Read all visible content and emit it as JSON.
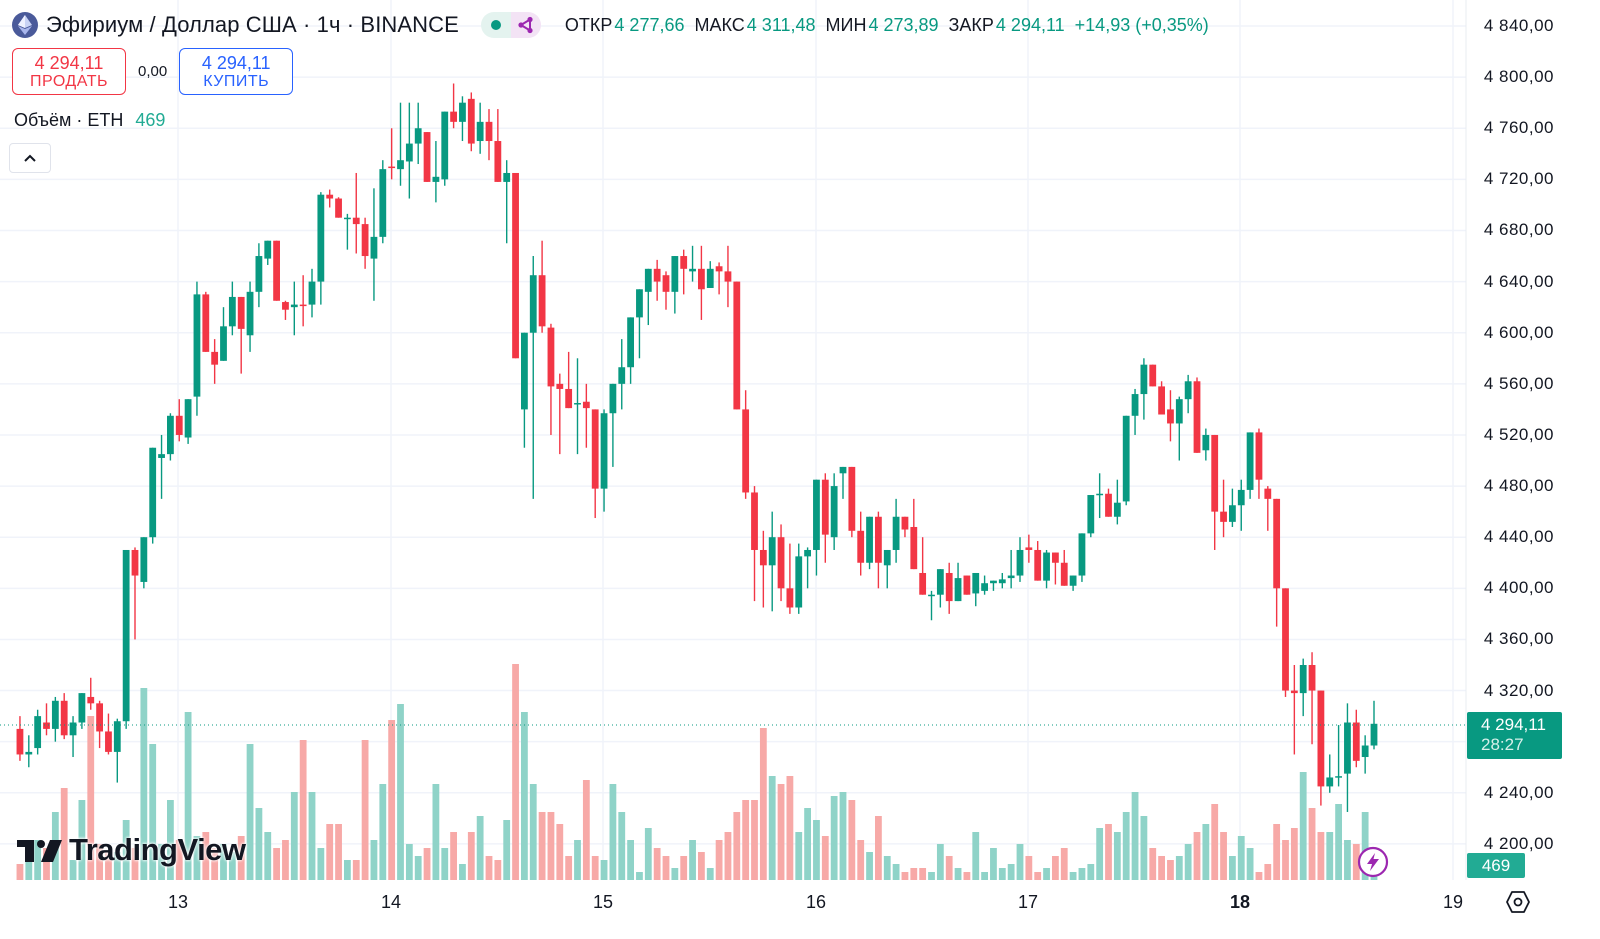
{
  "header": {
    "title": "Эфириум / Доллар США · 1ч · BINANCE",
    "symbol_icon": "ethereum-icon",
    "status_icons": [
      "market-open-dot-icon",
      "share-icon"
    ],
    "ohlc": {
      "open_label": "ОТКР",
      "open": "4 277,66",
      "high_label": "МАКС",
      "high": "4 311,48",
      "low_label": "МИН",
      "low": "4 273,89",
      "close_label": "ЗАКР",
      "close": "4 294,11",
      "change": "+14,93 (+0,35%)"
    }
  },
  "trade": {
    "sell_price": "4 294,11",
    "sell_label": "ПРОДАТЬ",
    "spread": "0,00",
    "buy_price": "4 294,11",
    "buy_label": "КУПИТЬ"
  },
  "volume_legend": {
    "label": "Объём · ETH",
    "value": "469"
  },
  "price_axis": {
    "labels": [
      "4 840,00",
      "4 800,00",
      "4 760,00",
      "4 720,00",
      "4 680,00",
      "4 640,00",
      "4 600,00",
      "4 560,00",
      "4 520,00",
      "4 480,00",
      "4 440,00",
      "4 400,00",
      "4 360,00",
      "4 320,00",
      "4 240,00",
      "4 200,00"
    ],
    "current_price": "4 294,11",
    "countdown": "28:27",
    "volume_tag": "469"
  },
  "time_axis": {
    "labels": [
      "13",
      "14",
      "15",
      "16",
      "17",
      "18",
      "19"
    ],
    "bold_label": "18"
  },
  "branding": {
    "logo_text": "TradingView"
  },
  "colors": {
    "up": "#089981",
    "down": "#f23645",
    "volume_up": "#8fd3c8",
    "volume_down": "#f7a9a7",
    "grid": "#f0f3fa",
    "accent_buy": "#2962ff"
  },
  "chart_data": {
    "type": "candlestick",
    "title": "Эфириум / Доллар США · 1ч · BINANCE",
    "xlabel": "",
    "ylabel": "",
    "ylim": [
      4180,
      4850
    ],
    "interval": "1h",
    "categories_days": [
      "13",
      "14",
      "15",
      "16",
      "17",
      "18",
      "19"
    ],
    "grid": true,
    "ohlc": [
      [
        4290,
        4300,
        4265,
        4270
      ],
      [
        4270,
        4285,
        4260,
        4272
      ],
      [
        4275,
        4305,
        4270,
        4300
      ],
      [
        4295,
        4310,
        4285,
        4290
      ],
      [
        4290,
        4315,
        4280,
        4312
      ],
      [
        4312,
        4318,
        4282,
        4285
      ],
      [
        4285,
        4300,
        4268,
        4295
      ],
      [
        4295,
        4318,
        4290,
        4318
      ],
      [
        4315,
        4330,
        4305,
        4310
      ],
      [
        4310,
        4312,
        4275,
        4288
      ],
      [
        4288,
        4302,
        4270,
        4272
      ],
      [
        4272,
        4298,
        4248,
        4296
      ],
      [
        4296,
        4430,
        4290,
        4430
      ],
      [
        4430,
        4432,
        4360,
        4410
      ],
      [
        4405,
        4440,
        4400,
        4440
      ],
      [
        4440,
        4510,
        4435,
        4510
      ],
      [
        4502,
        4520,
        4470,
        4505
      ],
      [
        4505,
        4537,
        4500,
        4535
      ],
      [
        4535,
        4548,
        4515,
        4520
      ],
      [
        4518,
        4548,
        4513,
        4548
      ],
      [
        4550,
        4640,
        4535,
        4630
      ],
      [
        4630,
        4632,
        4585,
        4585
      ],
      [
        4585,
        4595,
        4560,
        4575
      ],
      [
        4578,
        4620,
        4578,
        4605
      ],
      [
        4605,
        4640,
        4598,
        4628
      ],
      [
        4628,
        4628,
        4568,
        4603
      ],
      [
        4598,
        4640,
        4585,
        4632
      ],
      [
        4632,
        4670,
        4620,
        4660
      ],
      [
        4658,
        4672,
        4653,
        4672
      ],
      [
        4672,
        4672,
        4628,
        4625
      ],
      [
        4624,
        4625,
        4610,
        4618
      ],
      [
        4620,
        4640,
        4598,
        4622
      ],
      [
        4622,
        4645,
        4605,
        4621
      ],
      [
        4622,
        4650,
        4612,
        4640
      ],
      [
        4640,
        4710,
        4622,
        4708
      ],
      [
        4708,
        4712,
        4698,
        4705
      ],
      [
        4705,
        4706,
        4690,
        4690
      ],
      [
        4690,
        4693,
        4665,
        4690
      ],
      [
        4690,
        4725,
        4662,
        4685
      ],
      [
        4685,
        4690,
        4650,
        4660
      ],
      [
        4658,
        4713,
        4625,
        4675
      ],
      [
        4675,
        4735,
        4670,
        4728
      ],
      [
        4730,
        4760,
        4720,
        4729
      ],
      [
        4728,
        4780,
        4715,
        4735
      ],
      [
        4734,
        4780,
        4705,
        4748
      ],
      [
        4748,
        4780,
        4732,
        4760
      ],
      [
        4757,
        4755,
        4740,
        4718
      ],
      [
        4718,
        4750,
        4702,
        4722
      ],
      [
        4720,
        4768,
        4715,
        4773
      ],
      [
        4773,
        4795,
        4760,
        4765
      ],
      [
        4765,
        4785,
        4750,
        4780
      ],
      [
        4783,
        4788,
        4742,
        4748
      ],
      [
        4750,
        4780,
        4740,
        4765
      ],
      [
        4765,
        4775,
        4735,
        4750
      ],
      [
        4750,
        4775,
        4740,
        4718
      ],
      [
        4718,
        4735,
        4670,
        4725
      ],
      [
        4725,
        4715,
        4605,
        4580
      ],
      [
        4540,
        4600,
        4510,
        4600
      ],
      [
        4600,
        4660,
        4470,
        4645
      ],
      [
        4645,
        4672,
        4600,
        4605
      ],
      [
        4604,
        4607,
        4520,
        4558
      ],
      [
        4560,
        4568,
        4505,
        4556
      ],
      [
        4556,
        4585,
        4550,
        4541
      ],
      [
        4545,
        4580,
        4505,
        4545
      ],
      [
        4546,
        4560,
        4510,
        4541
      ],
      [
        4540,
        4540,
        4455,
        4478
      ],
      [
        4478,
        4540,
        4460,
        4537
      ],
      [
        4537,
        4555,
        4495,
        4560
      ],
      [
        4560,
        4595,
        4540,
        4573
      ],
      [
        4573,
        4610,
        4560,
        4612
      ],
      [
        4612,
        4630,
        4580,
        4634
      ],
      [
        4632,
        4650,
        4606,
        4650
      ],
      [
        4650,
        4657,
        4625,
        4640
      ],
      [
        4645,
        4648,
        4618,
        4632
      ],
      [
        4632,
        4660,
        4615,
        4660
      ],
      [
        4660,
        4665,
        4630,
        4650
      ],
      [
        4648,
        4668,
        4640,
        4650
      ],
      [
        4650,
        4668,
        4610,
        4634
      ],
      [
        4635,
        4656,
        4640,
        4650
      ],
      [
        4652,
        4655,
        4630,
        4648
      ],
      [
        4648,
        4668,
        4620,
        4640
      ],
      [
        4640,
        4640,
        4540,
        4540
      ],
      [
        4540,
        4555,
        4470,
        4475
      ],
      [
        4475,
        4480,
        4390,
        4430
      ],
      [
        4430,
        4445,
        4385,
        4418
      ],
      [
        4418,
        4460,
        4382,
        4440
      ],
      [
        4440,
        4450,
        4390,
        4400
      ],
      [
        4400,
        4435,
        4380,
        4385
      ],
      [
        4385,
        4435,
        4380,
        4425
      ],
      [
        4425,
        4432,
        4400,
        4430
      ],
      [
        4430,
        4480,
        4410,
        4485
      ],
      [
        4485,
        4490,
        4420,
        4442
      ],
      [
        4440,
        4490,
        4430,
        4480
      ],
      [
        4490,
        4495,
        4470,
        4495
      ],
      [
        4495,
        4495,
        4440,
        4445
      ],
      [
        4445,
        4460,
        4410,
        4420
      ],
      [
        4420,
        4450,
        4415,
        4456
      ],
      [
        4456,
        4460,
        4400,
        4420
      ],
      [
        4418,
        4430,
        4400,
        4430
      ],
      [
        4430,
        4470,
        4420,
        4456
      ],
      [
        4456,
        4455,
        4440,
        4446
      ],
      [
        4448,
        4470,
        4420,
        4415
      ],
      [
        4412,
        4440,
        4400,
        4395
      ],
      [
        4395,
        4398,
        4375,
        4395
      ],
      [
        4395,
        4405,
        4385,
        4415
      ],
      [
        4412,
        4420,
        4380,
        4390
      ],
      [
        4390,
        4420,
        4390,
        4408
      ],
      [
        4410,
        4405,
        4395,
        4395
      ],
      [
        4396,
        4412,
        4386,
        4412
      ],
      [
        4398,
        4410,
        4395,
        4404
      ],
      [
        4404,
        4406,
        4398,
        4406
      ],
      [
        4404,
        4412,
        4400,
        4407
      ],
      [
        4408,
        4430,
        4400,
        4410
      ],
      [
        4410,
        4440,
        4405,
        4430
      ],
      [
        4432,
        4442,
        4420,
        4430
      ],
      [
        4430,
        4437,
        4412,
        4406
      ],
      [
        4406,
        4430,
        4400,
        4428
      ],
      [
        4428,
        4428,
        4403,
        4420
      ],
      [
        4420,
        4430,
        4410,
        4402
      ],
      [
        4402,
        4405,
        4398,
        4410
      ],
      [
        4410,
        4440,
        4405,
        4443
      ],
      [
        4443,
        4470,
        4440,
        4473
      ],
      [
        4473,
        4490,
        4455,
        4474
      ],
      [
        4474,
        4478,
        4458,
        4456
      ],
      [
        4456,
        4485,
        4450,
        4467
      ],
      [
        4468,
        4520,
        4465,
        4535
      ],
      [
        4535,
        4556,
        4520,
        4552
      ],
      [
        4552,
        4580,
        4532,
        4575
      ],
      [
        4575,
        4573,
        4560,
        4558
      ],
      [
        4558,
        4562,
        4541,
        4536
      ],
      [
        4540,
        4555,
        4515,
        4529
      ],
      [
        4529,
        4550,
        4500,
        4548
      ],
      [
        4548,
        4567,
        4537,
        4562
      ],
      [
        4562,
        4565,
        4510,
        4506
      ],
      [
        4508,
        4525,
        4500,
        4520
      ],
      [
        4520,
        4520,
        4430,
        4460
      ],
      [
        4460,
        4485,
        4440,
        4452
      ],
      [
        4452,
        4478,
        4448,
        4465
      ],
      [
        4465,
        4485,
        4445,
        4477
      ],
      [
        4477,
        4520,
        4470,
        4522
      ],
      [
        4522,
        4525,
        4470,
        4485
      ],
      [
        4478,
        4480,
        4445,
        4470
      ],
      [
        4470,
        4470,
        4370,
        4400
      ],
      [
        4400,
        4400,
        4315,
        4320
      ],
      [
        4320,
        4340,
        4270,
        4318
      ],
      [
        4318,
        4345,
        4300,
        4340
      ],
      [
        4340,
        4350,
        4278,
        4320
      ],
      [
        4320,
        4320,
        4230,
        4245
      ],
      [
        4245,
        4270,
        4240,
        4252
      ],
      [
        4252,
        4293,
        4245,
        4253
      ],
      [
        4255,
        4310,
        4225,
        4295
      ],
      [
        4295,
        4305,
        4260,
        4265
      ],
      [
        4268,
        4285,
        4255,
        4277
      ],
      [
        4277,
        4312,
        4274,
        4294
      ]
    ],
    "volume": [
      20,
      30,
      50,
      40,
      85,
      115,
      25,
      100,
      205,
      45,
      35,
      35,
      75,
      40,
      240,
      170,
      45,
      100,
      50,
      210,
      55,
      60,
      40,
      45,
      35,
      55,
      170,
      90,
      60,
      40,
      50,
      110,
      175,
      110,
      40,
      70,
      70,
      25,
      25,
      175,
      50,
      120,
      200,
      220,
      45,
      30,
      40,
      120,
      40,
      60,
      20,
      60,
      80,
      30,
      25,
      75,
      270,
      210,
      120,
      85,
      85,
      70,
      30,
      50,
      125,
      30,
      25,
      120,
      85,
      50,
      10,
      65,
      40,
      30,
      15,
      30,
      50,
      35,
      15,
      50,
      60,
      85,
      100,
      100,
      190,
      130,
      120,
      130,
      60,
      90,
      75,
      55,
      105,
      110,
      100,
      50,
      35,
      80,
      30,
      20,
      10,
      15,
      15,
      10,
      45,
      30,
      15,
      10,
      60,
      10,
      40,
      15,
      20,
      45,
      30,
      10,
      15,
      30,
      40,
      10,
      15,
      20,
      65,
      70,
      60,
      85,
      110,
      80,
      40,
      30,
      25,
      30,
      45,
      60,
      70,
      95,
      60,
      30,
      55,
      40,
      10,
      20,
      70,
      50,
      65,
      135,
      90,
      60,
      60,
      95,
      50,
      45,
      85,
      30,
      20,
      10
    ]
  }
}
